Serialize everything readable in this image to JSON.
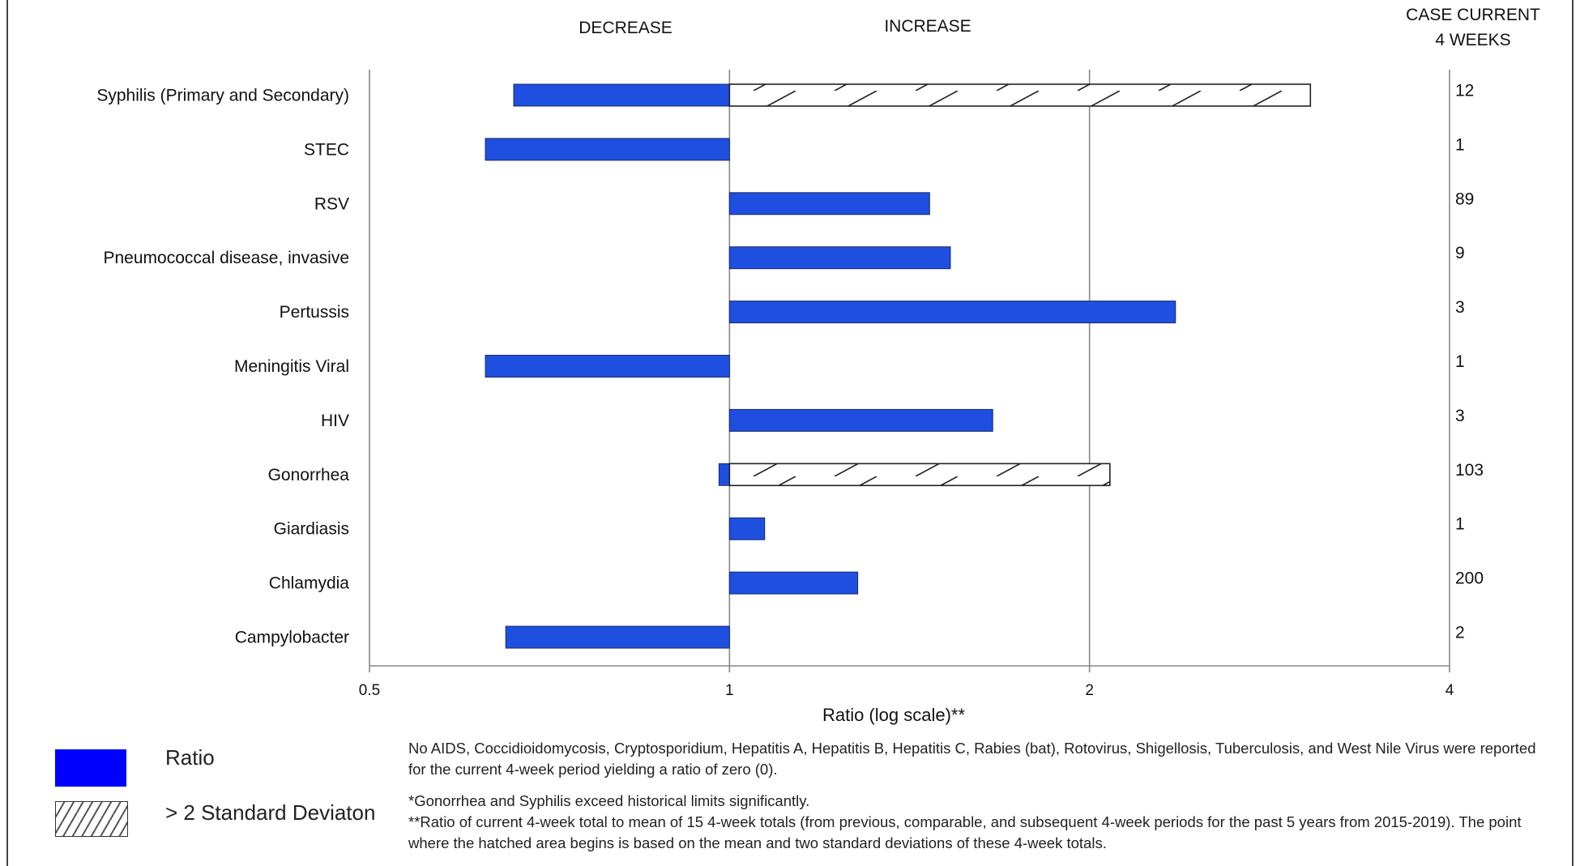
{
  "chart_data": {
    "type": "bar",
    "orientation": "horizontal",
    "scale": "log",
    "baseline": 1,
    "xlabel": "Ratio (log scale)**",
    "xlim": [
      0.5,
      4
    ],
    "xticks": [
      "0.5",
      "1",
      "2",
      "4"
    ],
    "decrease_label": "DECREASE",
    "increase_label": "INCREASE",
    "cases_header": [
      "CASE CURRENT",
      "4 WEEKS"
    ],
    "categories": [
      "Syphilis (Primary and Secondary)",
      "STEC",
      "RSV",
      "Pneumococcal disease, invasive",
      "Pertussis",
      "Meningitis Viral",
      "HIV",
      "Gonorrhea",
      "Giardiasis",
      "Chlamydia",
      "Campylobacter"
    ],
    "series": [
      {
        "name": "Ratio",
        "values": [
          0.66,
          0.625,
          1.47,
          1.53,
          2.36,
          0.625,
          1.66,
          0.98,
          1.07,
          1.28,
          0.65
        ]
      },
      {
        "name": "> 2 Standard Deviaton",
        "values": [
          3.06,
          null,
          null,
          null,
          null,
          null,
          null,
          2.08,
          null,
          null,
          null
        ]
      }
    ],
    "cases": [
      "12",
      "1",
      "89",
      "9",
      "3",
      "1",
      "3",
      "103",
      "1",
      "200",
      "2"
    ],
    "colors": {
      "ratio": "#1f4fe0",
      "legend_ratio": "#0000ff",
      "hatch_line": "#222222"
    },
    "grid": true
  },
  "legend": {
    "ratio_label": "Ratio",
    "sd_label": "> 2 Standard Deviaton"
  },
  "notes": {
    "zero_reported": "No AIDS, Coccidioidomycosis, Cryptosporidium, Hepatitis A,  Hepatitis B, Hepatitis  C,  Rabies (bat),  Rotovirus,  Shigellosis, Tuberculosis, and West Nile Virus were reported for the current 4-week period yielding a ratio of zero (0).",
    "exceed": "*Gonorrhea and Syphilis exceed historical limits  significantly.",
    "ratio_def": "**Ratio of current 4-week total to mean of 15 4-week totals (from previous, comparable, and subsequent 4-week periods for the past 5 years from 2015-2019). The point where the hatched area begins is based on the mean and two standard deviations of these 4-week totals."
  }
}
